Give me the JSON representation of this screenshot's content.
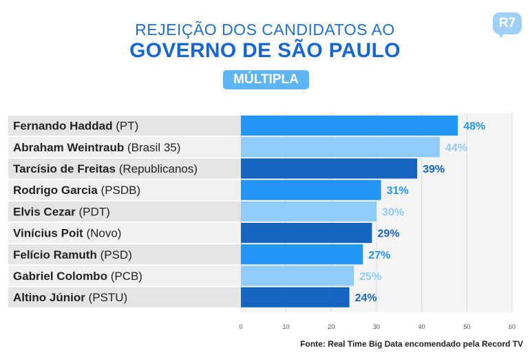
{
  "header": {
    "title_line1": "REJEIÇÃO DOS CANDIDATOS AO",
    "title_line2": "GOVERNO DE SÃO PAULO",
    "badge": "MÚLTIPLA",
    "logo": "R7"
  },
  "colors": {
    "accent": "#1766cf",
    "badge": "#5eb5f5",
    "bar_medium": "#2196f3",
    "bar_light": "#90caf9",
    "bar_dark": "#1565c0",
    "label_odd_bg": "#e4e4e4",
    "label_even_bg": "#f0f0f0",
    "plot_bg": "#f4f4f4"
  },
  "chart_data": {
    "type": "bar",
    "orientation": "horizontal",
    "categories": [
      {
        "name": "Fernando Haddad",
        "party": "(PT)"
      },
      {
        "name": "Abraham Weintraub",
        "party": "(Brasil 35)"
      },
      {
        "name": "Tarcísio de Freitas",
        "party": "(Republicanos)"
      },
      {
        "name": "Rodrigo Garcia",
        "party": "(PSDB)"
      },
      {
        "name": "Elvis Cezar",
        "party": "(PDT)"
      },
      {
        "name": "Vinícius Poit",
        "party": "(Novo)"
      },
      {
        "name": "Felício Ramuth",
        "party": "(PSD)"
      },
      {
        "name": "Gabriel Colombo",
        "party": "(PCB)"
      },
      {
        "name": "Altino Júnior",
        "party": "(PSTU)"
      }
    ],
    "values": [
      48,
      44,
      39,
      31,
      30,
      29,
      27,
      25,
      24
    ],
    "value_labels": [
      "48%",
      "44%",
      "39%",
      "31%",
      "30%",
      "29%",
      "27%",
      "25%",
      "24%"
    ],
    "bar_color_pattern": [
      "medium",
      "light",
      "dark",
      "medium",
      "light",
      "dark",
      "medium",
      "light",
      "dark"
    ],
    "xlim": [
      0,
      60
    ],
    "xticks": [
      0,
      10,
      20,
      30,
      40,
      50,
      60
    ],
    "xtick_labels": [
      "0",
      "10",
      "20",
      "30",
      "40",
      "50",
      "60"
    ],
    "grid": "vertical",
    "legend": "none"
  },
  "footer": {
    "source": "Fonte: Real Time Big Data encomendado pela Record TV"
  }
}
